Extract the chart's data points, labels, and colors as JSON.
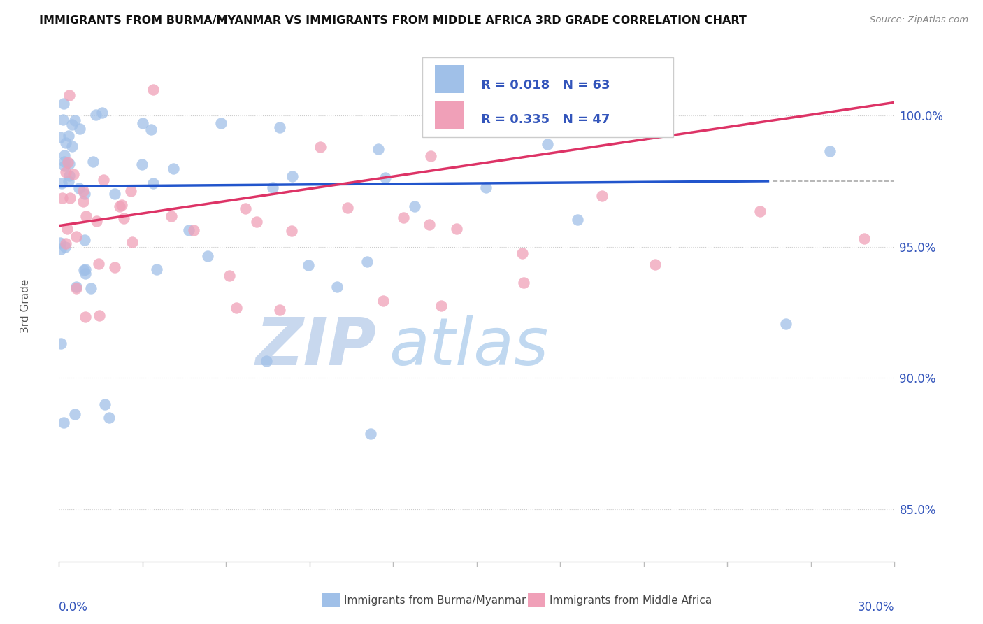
{
  "title": "IMMIGRANTS FROM BURMA/MYANMAR VS IMMIGRANTS FROM MIDDLE AFRICA 3RD GRADE CORRELATION CHART",
  "source": "Source: ZipAtlas.com",
  "ylabel": "3rd Grade",
  "xlim": [
    0.0,
    30.0
  ],
  "ylim": [
    83.0,
    102.5
  ],
  "yticks": [
    85.0,
    90.0,
    95.0,
    100.0
  ],
  "ytick_labels": [
    "85.0%",
    "90.0%",
    "95.0%",
    "100.0%"
  ],
  "dashed_y": 97.5,
  "legend_r_blue": "R = 0.018",
  "legend_n_blue": "N = 63",
  "legend_r_pink": "R = 0.335",
  "legend_n_pink": "N = 47",
  "legend_label_blue": "Immigrants from Burma/Myanmar",
  "legend_label_pink": "Immigrants from Middle Africa",
  "blue_color": "#a0c0e8",
  "pink_color": "#f0a0b8",
  "blue_line_color": "#2255cc",
  "pink_line_color": "#dd3366",
  "axis_color": "#3355bb",
  "watermark_zip": "ZIP",
  "watermark_atlas": "atlas",
  "watermark_color_zip": "#c8d8ee",
  "watermark_color_atlas": "#c0d8f0"
}
